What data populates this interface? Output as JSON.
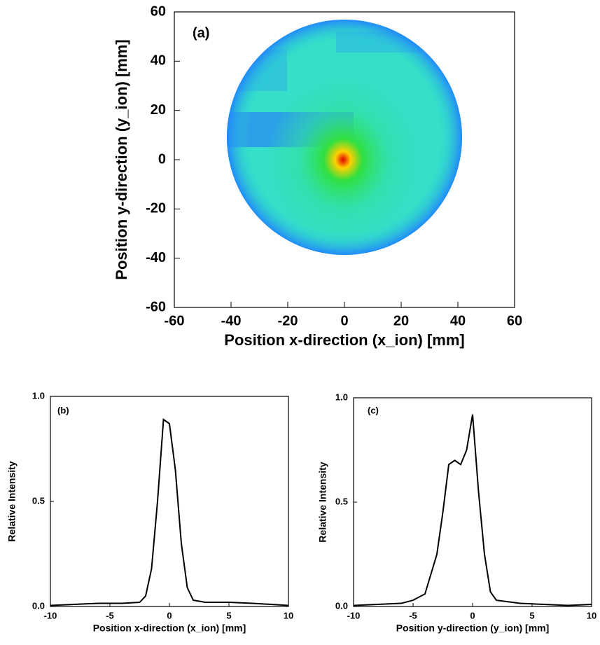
{
  "chart_data": [
    {
      "type": "heatmap",
      "annotation": "(a)",
      "xlabel": "Position x-direction (x_ion) [mm]",
      "ylabel": "Position y-direction (y_ion) [mm]",
      "xlim": [
        -60,
        60
      ],
      "ylim": [
        -60,
        60
      ],
      "xticks": [
        -60,
        -40,
        -20,
        0,
        20,
        40,
        60
      ],
      "yticks": [
        -60,
        -40,
        -20,
        0,
        20,
        40,
        60
      ]
    },
    {
      "type": "line",
      "annotation": "(b)",
      "xlabel": "Position x-direction (x_ion) [mm]",
      "ylabel": "Relative Intensity",
      "xlim": [
        -10,
        10
      ],
      "ylim": [
        0,
        1
      ],
      "xticks": [
        -10,
        -5,
        0,
        5,
        10
      ],
      "yticks": [
        {
          "value": 0,
          "label": "0.0"
        },
        {
          "value": 0.5,
          "label": "0.5"
        },
        {
          "value": 1,
          "label": "1.0"
        }
      ],
      "series": [
        {
          "color": "#000000",
          "x": [
            -10,
            -8,
            -6,
            -4,
            -2.5,
            -2,
            -1.5,
            -1,
            -0.5,
            0,
            0.5,
            1,
            1.5,
            2,
            3,
            5,
            7,
            10
          ],
          "values": [
            0.005,
            0.01,
            0.015,
            0.015,
            0.02,
            0.05,
            0.18,
            0.5,
            0.89,
            0.87,
            0.65,
            0.3,
            0.09,
            0.03,
            0.02,
            0.02,
            0.015,
            0.005
          ]
        }
      ]
    },
    {
      "type": "line",
      "annotation": "(c)",
      "xlabel": "Position y-direction (y_ion) [mm]",
      "ylabel": "Relative Intensity",
      "xlim": [
        -10,
        10
      ],
      "ylim": [
        0,
        1
      ],
      "xticks": [
        -10,
        -5,
        0,
        5,
        10
      ],
      "yticks": [
        {
          "value": 0,
          "label": "0.0"
        },
        {
          "value": 0.5,
          "label": "0.5"
        },
        {
          "value": 1,
          "label": "1.0"
        }
      ],
      "series": [
        {
          "color": "#000000",
          "x": [
            -10,
            -8,
            -6,
            -5,
            -4,
            -3,
            -2.5,
            -2,
            -1.5,
            -1,
            -0.5,
            0,
            0.5,
            1,
            1.5,
            2,
            4,
            6,
            8,
            10
          ],
          "values": [
            0.005,
            0.01,
            0.015,
            0.03,
            0.06,
            0.25,
            0.45,
            0.68,
            0.7,
            0.68,
            0.75,
            0.92,
            0.55,
            0.25,
            0.07,
            0.03,
            0.015,
            0.01,
            0.005,
            0.01
          ]
        }
      ]
    }
  ]
}
